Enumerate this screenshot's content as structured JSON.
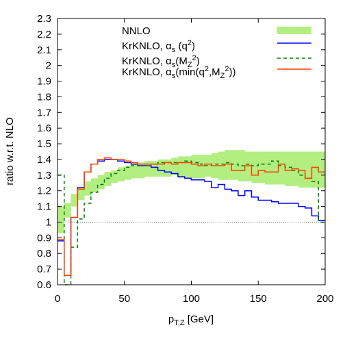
{
  "chart_data": {
    "type": "line",
    "xlabel": "p_T,Z [GeV]",
    "ylabel": "ratio w.r.t. NLO",
    "xlim": [
      0,
      200
    ],
    "ylim": [
      0.6,
      2.3
    ],
    "x_ticks": [
      0,
      50,
      100,
      150,
      200
    ],
    "y_ticks": [
      0.6,
      0.7,
      0.8,
      0.9,
      1,
      1.1,
      1.2,
      1.3,
      1.4,
      1.5,
      1.6,
      1.7,
      1.8,
      1.9,
      2,
      2.1,
      2.2,
      2.3
    ],
    "reference_line": 1.0,
    "grid": false,
    "legend_position": "top-right",
    "bin_edges": [
      0,
      5,
      10,
      15,
      20,
      25,
      30,
      35,
      40,
      45,
      50,
      55,
      60,
      65,
      70,
      75,
      80,
      85,
      90,
      95,
      100,
      105,
      110,
      115,
      120,
      125,
      130,
      135,
      140,
      145,
      150,
      155,
      160,
      165,
      170,
      175,
      180,
      185,
      190,
      195,
      200
    ],
    "series": [
      {
        "name": "NNLO",
        "style": "band",
        "color": "#b3ee80",
        "low": [
          0.93,
          1.03,
          1.1,
          1.14,
          1.17,
          1.19,
          1.21,
          1.23,
          1.25,
          1.26,
          1.27,
          1.28,
          1.28,
          1.29,
          1.29,
          1.29,
          1.29,
          1.3,
          1.28,
          1.28,
          1.28,
          1.28,
          1.29,
          1.28,
          1.27,
          1.27,
          1.27,
          1.26,
          1.26,
          1.25,
          1.25,
          1.24,
          1.24,
          1.24,
          1.23,
          1.23,
          1.22,
          1.22,
          1.22,
          1.22
        ],
        "high": [
          1.1,
          1.12,
          1.18,
          1.22,
          1.26,
          1.28,
          1.3,
          1.32,
          1.33,
          1.35,
          1.36,
          1.37,
          1.38,
          1.39,
          1.39,
          1.4,
          1.4,
          1.41,
          1.42,
          1.42,
          1.43,
          1.43,
          1.43,
          1.44,
          1.45,
          1.46,
          1.46,
          1.46,
          1.45,
          1.45,
          1.45,
          1.45,
          1.45,
          1.45,
          1.45,
          1.45,
          1.45,
          1.45,
          1.45,
          1.45
        ]
      },
      {
        "name": "KrKNLO, αs (q²)",
        "color": "#0000ff",
        "dash": "",
        "values": [
          0.88,
          0.66,
          1.03,
          1.22,
          1.32,
          1.37,
          1.39,
          1.4,
          1.4,
          1.39,
          1.38,
          1.37,
          1.36,
          1.36,
          1.35,
          1.33,
          1.32,
          1.31,
          1.29,
          1.28,
          1.27,
          1.27,
          1.26,
          1.22,
          1.24,
          1.21,
          1.2,
          1.17,
          1.2,
          1.16,
          1.14,
          1.14,
          1.13,
          1.12,
          1.12,
          1.12,
          1.1,
          1.09,
          1.04,
          1.01
        ]
      },
      {
        "name": "KrKNLO, αs(MZ²)",
        "color": "#008000",
        "dash": "5,4",
        "values": [
          1.3,
          0.56,
          0.84,
          1.02,
          1.12,
          1.19,
          1.24,
          1.28,
          1.31,
          1.33,
          1.35,
          1.36,
          1.37,
          1.36,
          1.37,
          1.38,
          1.38,
          1.38,
          1.38,
          1.39,
          1.38,
          1.37,
          1.36,
          1.37,
          1.37,
          1.38,
          1.37,
          1.36,
          1.37,
          1.36,
          1.37,
          1.37,
          1.39,
          1.36,
          1.35,
          1.33,
          1.3,
          1.28,
          1.26,
          1.0
        ]
      },
      {
        "name": "KrKNLO, αs(min(q²,MZ²))",
        "color": "#ff4000",
        "dash": "",
        "values": [
          0.89,
          0.66,
          1.03,
          1.21,
          1.32,
          1.37,
          1.4,
          1.41,
          1.4,
          1.4,
          1.39,
          1.38,
          1.37,
          1.37,
          1.37,
          1.37,
          1.38,
          1.37,
          1.38,
          1.38,
          1.37,
          1.36,
          1.37,
          1.36,
          1.36,
          1.37,
          1.33,
          1.33,
          1.36,
          1.3,
          1.33,
          1.32,
          1.32,
          1.37,
          1.33,
          1.34,
          1.33,
          1.28,
          1.35,
          1.32
        ]
      }
    ]
  },
  "legend": {
    "nnlo": "NNLO",
    "q2": "KrKNLO, αs (q²)",
    "mz": "KrKNLO, αs(MZ²)",
    "min": "KrKNLO, αs(min(q²,MZ²))"
  }
}
